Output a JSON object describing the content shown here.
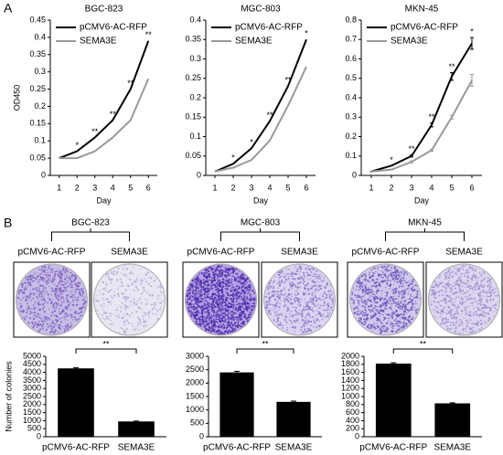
{
  "panel_labels": [
    "A",
    "B"
  ],
  "chart_data": [
    {
      "type": "line",
      "title": "BGC-823",
      "ylabel": "OD450",
      "xlabel": "Day",
      "categories": [
        "1",
        "2",
        "3",
        "4",
        "5",
        "6"
      ],
      "ylim": [
        0,
        0.45
      ],
      "yticks": [
        0,
        0.05,
        0.1,
        0.15,
        0.2,
        0.25,
        0.3,
        0.35,
        0.4,
        0.45
      ],
      "legend": "upper left",
      "grid": false,
      "series": [
        {
          "name": "pCMV6-AC-RFP",
          "color": "#000000",
          "values": [
            0.05,
            0.07,
            0.11,
            0.16,
            0.25,
            0.39
          ]
        },
        {
          "name": "SEMA3E",
          "color": "#999999",
          "values": [
            0.05,
            0.05,
            0.07,
            0.11,
            0.16,
            0.28
          ]
        }
      ],
      "annotations": [
        null,
        "*",
        "**",
        "**",
        "**",
        "**"
      ]
    },
    {
      "type": "line",
      "title": "MGC-803",
      "xlabel": "Day",
      "categories": [
        "1",
        "2",
        "3",
        "4",
        "5",
        "6"
      ],
      "ylim": [
        0,
        0.4
      ],
      "yticks": [
        0,
        0.05,
        0.1,
        0.15,
        0.2,
        0.25,
        0.3,
        0.35,
        0.4
      ],
      "legend": "upper left",
      "grid": false,
      "series": [
        {
          "name": "pCMV6-AC-RFP",
          "color": "#000000",
          "values": [
            0.01,
            0.03,
            0.07,
            0.14,
            0.23,
            0.35
          ]
        },
        {
          "name": "SEMA3E",
          "color": "#999999",
          "values": [
            0.01,
            0.02,
            0.04,
            0.09,
            0.18,
            0.28
          ]
        }
      ],
      "annotations": [
        null,
        "*",
        "*",
        "**",
        "**",
        "*"
      ]
    },
    {
      "type": "line",
      "title": "MKN-45",
      "xlabel": "Day",
      "categories": [
        "1",
        "2",
        "3",
        "4",
        "5",
        "6"
      ],
      "ylim": [
        0,
        0.8
      ],
      "yticks": [
        0,
        0.1,
        0.2,
        0.3,
        0.4,
        0.5,
        0.6,
        0.7,
        0.8
      ],
      "legend": "upper left",
      "grid": false,
      "series": [
        {
          "name": "pCMV6-AC-RFP",
          "color": "#000000",
          "values": [
            0.02,
            0.05,
            0.1,
            0.26,
            0.51,
            0.68
          ],
          "errors": [
            0,
            0,
            0.005,
            0.01,
            0.02,
            0.03
          ]
        },
        {
          "name": "SEMA3E",
          "color": "#999999",
          "values": [
            0.02,
            0.03,
            0.07,
            0.13,
            0.3,
            0.49
          ],
          "errors": [
            0,
            0,
            0.005,
            0.005,
            0.01,
            0.03
          ]
        }
      ],
      "annotations": [
        null,
        "*",
        "**",
        "**",
        "**",
        "*"
      ]
    },
    {
      "type": "bar",
      "ylabel": "Number of colonies",
      "categories": [
        "pCMV6-AC-RFP",
        "SEMA3E"
      ],
      "values": [
        4250,
        950
      ],
      "errors": [
        50,
        20
      ],
      "color": "#000000",
      "ylim": [
        0,
        5000
      ],
      "yticks": [
        0,
        500,
        1000,
        1500,
        2000,
        2500,
        3000,
        3500,
        4000,
        4500,
        5000
      ],
      "significance": "**"
    },
    {
      "type": "bar",
      "categories": [
        "pCMV6-AC-RFP",
        "SEMA3E"
      ],
      "values": [
        2400,
        1300
      ],
      "errors": [
        40,
        30
      ],
      "color": "#000000",
      "ylim": [
        0,
        3000
      ],
      "yticks": [
        0,
        500,
        1000,
        1500,
        2000,
        2500,
        3000
      ],
      "significance": "**"
    },
    {
      "type": "bar",
      "categories": [
        "pCMV6-AC-RFP",
        "SEMA3E"
      ],
      "values": [
        1820,
        830
      ],
      "errors": [
        20,
        15
      ],
      "color": "#000000",
      "ylim": [
        0,
        2000
      ],
      "yticks": [
        0,
        200,
        400,
        600,
        800,
        1000,
        1200,
        1400,
        1600,
        1800,
        2000
      ],
      "significance": "**"
    }
  ],
  "colony_assay": [
    {
      "cell_line": "BGC-823",
      "groups": [
        "pCMV6-AC-RFP",
        "SEMA3E"
      ]
    },
    {
      "cell_line": "MGC-803",
      "groups": [
        "pCMV6-AC-RFP",
        "SEMA3E"
      ]
    },
    {
      "cell_line": "MKN-45",
      "groups": [
        "pCMV6-AC-RFP",
        "SEMA3E"
      ]
    }
  ]
}
